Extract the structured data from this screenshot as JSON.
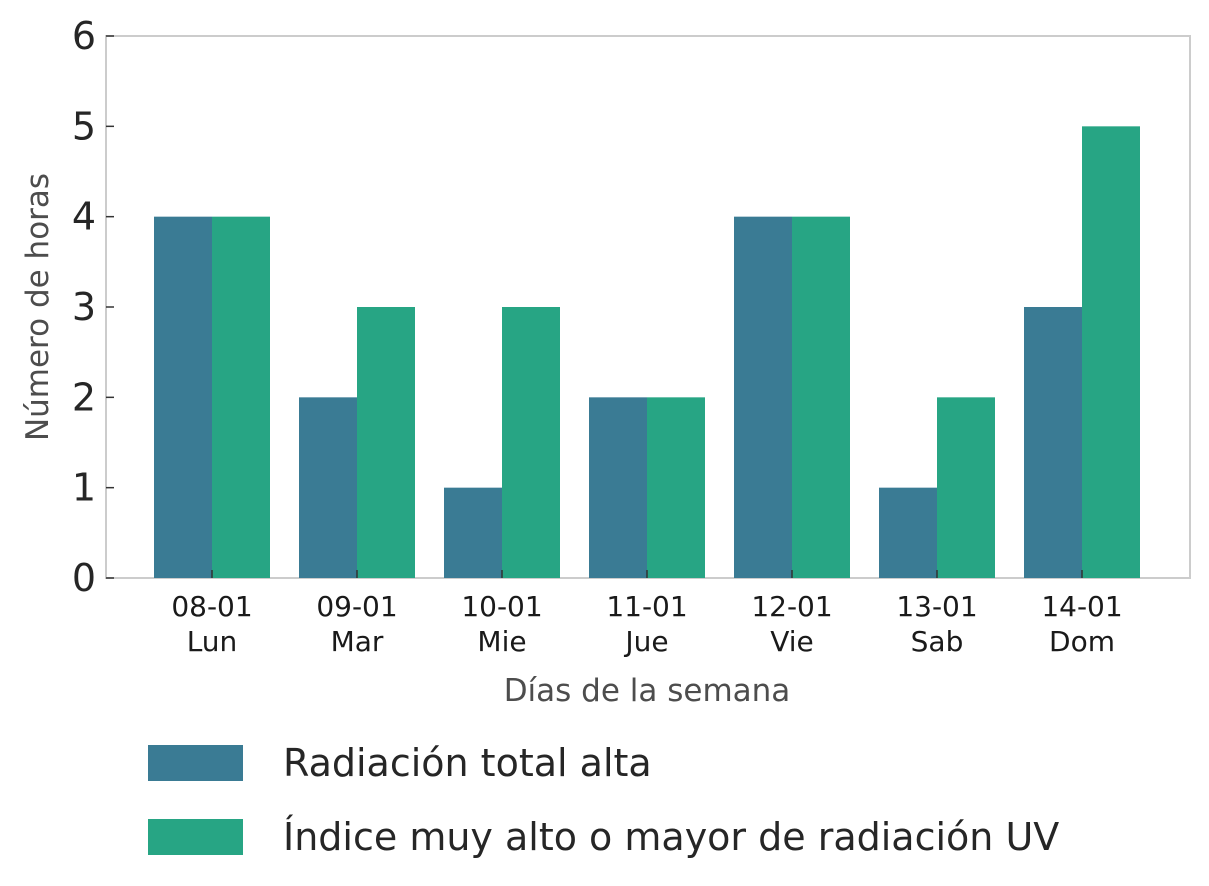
{
  "chart_data": {
    "type": "bar",
    "xlabel": "Días de la semana",
    "ylabel": "Número de horas",
    "ylim": [
      0,
      6
    ],
    "yticks": [
      0,
      1,
      2,
      3,
      4,
      5,
      6
    ],
    "categories": [
      [
        "08-01",
        "Lun"
      ],
      [
        "09-01",
        "Mar"
      ],
      [
        "10-01",
        "Mie"
      ],
      [
        "11-01",
        "Jue"
      ],
      [
        "12-01",
        "Vie"
      ],
      [
        "13-01",
        "Sab"
      ],
      [
        "14-01",
        "Dom"
      ]
    ],
    "series": [
      {
        "name": "Radiación total alta",
        "color": "#3a7b94",
        "values": [
          4,
          2,
          1,
          2,
          4,
          1,
          3
        ]
      },
      {
        "name": "Índice muy alto o mayor de radiación UV",
        "color": "#27a584",
        "values": [
          4,
          3,
          3,
          2,
          4,
          2,
          5
        ]
      }
    ],
    "grid": false,
    "legend_position": "bottom-left"
  }
}
